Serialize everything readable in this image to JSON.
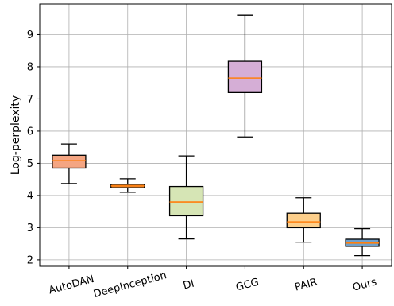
{
  "chart_data": {
    "type": "box",
    "title": "",
    "xlabel": "",
    "ylabel": "Log-perplexity",
    "ylim": [
      1.8,
      9.95
    ],
    "yticks": [
      2,
      3,
      4,
      5,
      6,
      7,
      8,
      9
    ],
    "grid": true,
    "categories": [
      "AutoDAN",
      "DeepInception",
      "DI",
      "GCG",
      "PAIR",
      "Ours"
    ],
    "boxes": [
      {
        "label": "AutoDAN",
        "whislo": 4.37,
        "q1": 4.85,
        "med": 5.08,
        "q3": 5.25,
        "whishi": 5.6,
        "color": "#f4a582"
      },
      {
        "label": "DeepInception",
        "whislo": 4.1,
        "q1": 4.24,
        "med": 4.3,
        "q3": 4.35,
        "whishi": 4.52,
        "color": "#e08a3c"
      },
      {
        "label": "DI",
        "whislo": 2.65,
        "q1": 3.37,
        "med": 3.8,
        "q3": 4.28,
        "whishi": 5.23,
        "color": "#d6e5b5"
      },
      {
        "label": "GCG",
        "whislo": 5.82,
        "q1": 7.2,
        "med": 7.65,
        "q3": 8.17,
        "whishi": 9.6,
        "color": "#d5aed6"
      },
      {
        "label": "PAIR",
        "whislo": 2.55,
        "q1": 3.0,
        "med": 3.18,
        "q3": 3.45,
        "whishi": 3.93,
        "color": "#fdcf8b"
      },
      {
        "label": "Ours",
        "whislo": 2.13,
        "q1": 2.42,
        "med": 2.52,
        "q3": 2.64,
        "whishi": 2.97,
        "color": "#6fa0cb"
      }
    ]
  }
}
